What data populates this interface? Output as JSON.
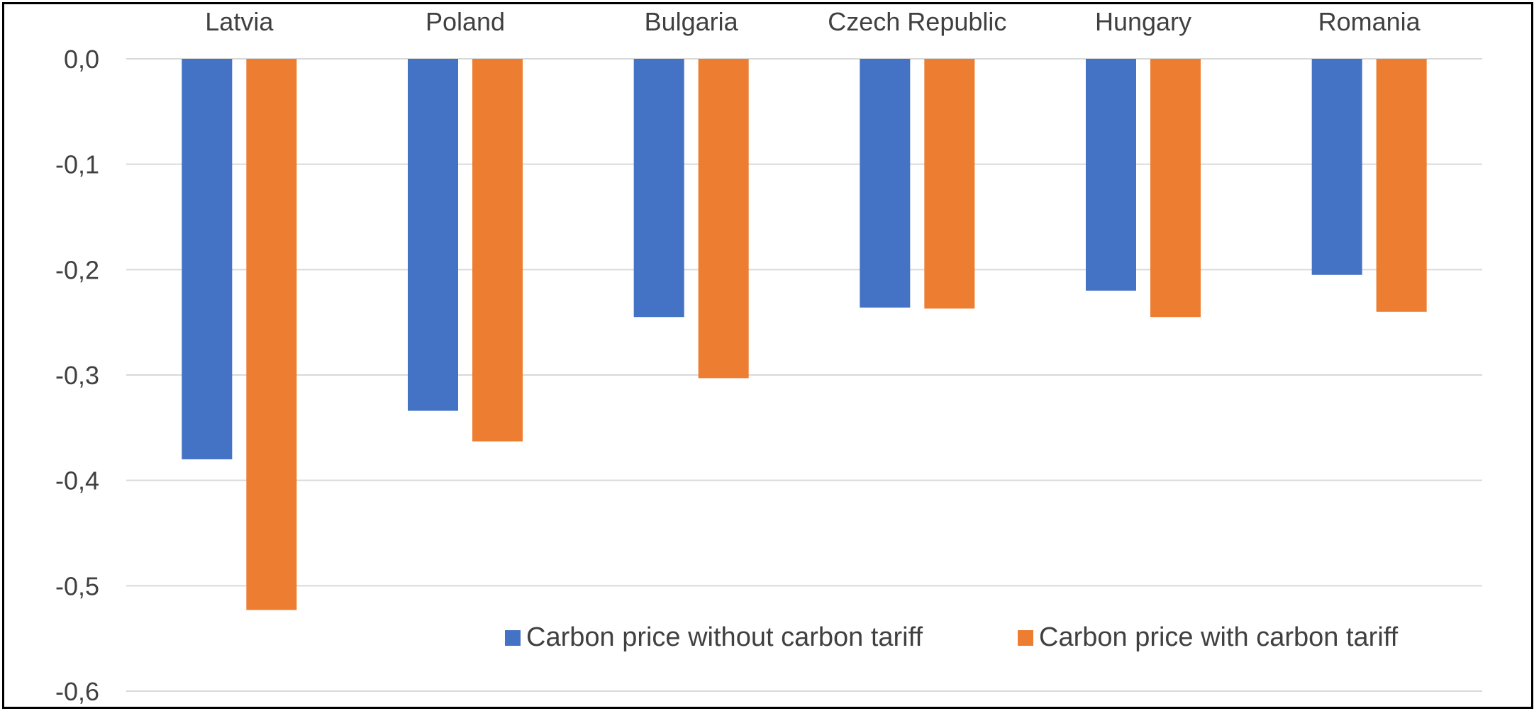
{
  "chart_data": {
    "type": "bar",
    "title": "",
    "xlabel": "",
    "ylabel": "",
    "categories": [
      "Latvia",
      "Poland",
      "Bulgaria",
      "Czech Republic",
      "Hungary",
      "Romania"
    ],
    "series": [
      {
        "name": "Carbon price without carbon tariff",
        "color": "#4472C4",
        "values": [
          -0.38,
          -0.334,
          -0.245,
          -0.236,
          -0.22,
          -0.205
        ]
      },
      {
        "name": "Carbon price with carbon tariff",
        "color": "#ED7D31",
        "values": [
          -0.523,
          -0.363,
          -0.303,
          -0.237,
          -0.245,
          -0.24
        ]
      }
    ],
    "ylim": [
      -0.6,
      0.0
    ],
    "yticks": [
      0.0,
      -0.1,
      -0.2,
      -0.3,
      -0.4,
      -0.5,
      -0.6
    ],
    "ytick_labels": [
      "0,0",
      "-0,1",
      "-0,2",
      "-0,3",
      "-0,4",
      "-0,5",
      "-0,6"
    ],
    "category_labels_position": "top",
    "grid": true,
    "legend_position": "bottom-right",
    "colors": {
      "grid": "#D9D9D9",
      "text": "#404040"
    }
  }
}
